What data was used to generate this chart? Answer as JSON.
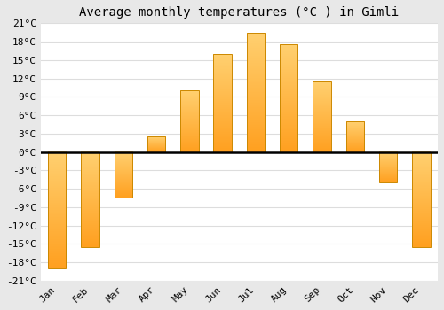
{
  "title": "Average monthly temperatures (°C ) in Gimli",
  "months": [
    "Jan",
    "Feb",
    "Mar",
    "Apr",
    "May",
    "Jun",
    "Jul",
    "Aug",
    "Sep",
    "Oct",
    "Nov",
    "Dec"
  ],
  "values": [
    -19,
    -15.5,
    -7.5,
    2.5,
    10,
    16,
    19.5,
    17.5,
    11.5,
    5,
    -5,
    -15.5
  ],
  "bar_color_top": "#FFD070",
  "bar_color_bottom": "#FFA020",
  "bar_edge_color": "#CC8800",
  "ylim": [
    -21,
    21
  ],
  "yticks": [
    -21,
    -18,
    -15,
    -12,
    -9,
    -6,
    -3,
    0,
    3,
    6,
    9,
    12,
    15,
    18,
    21
  ],
  "ytick_labels": [
    "-21°C",
    "-18°C",
    "-15°C",
    "-12°C",
    "-9°C",
    "-6°C",
    "-3°C",
    "0°C",
    "3°C",
    "6°C",
    "9°C",
    "12°C",
    "15°C",
    "18°C",
    "21°C"
  ],
  "background_color": "#e8e8e8",
  "plot_bg_color": "#ffffff",
  "grid_color": "#dddddd",
  "bar_width": 0.55,
  "font_family": "monospace",
  "title_fontsize": 10
}
